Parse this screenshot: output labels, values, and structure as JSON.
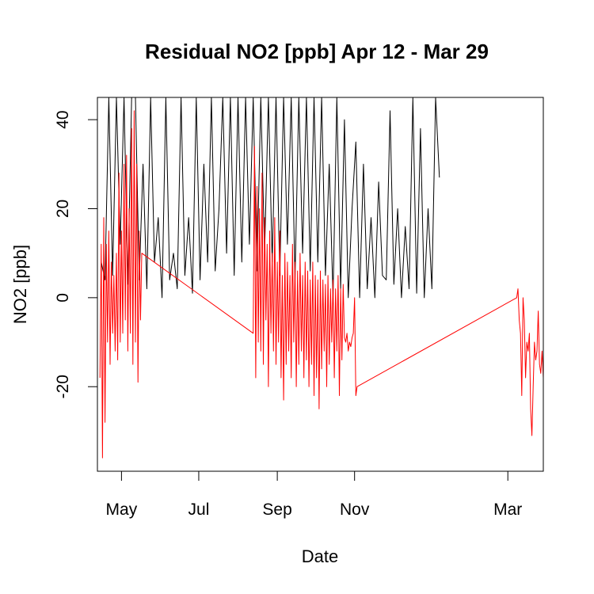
{
  "chart_data": {
    "type": "line",
    "title": "Residual NO2 [ppb] Apr 12 - Mar 29",
    "xlabel": "Date",
    "ylabel": "NO2 [ppb]",
    "x_range": [
      "2023-04-12",
      "2024-03-29"
    ],
    "ylim": [
      -39,
      45
    ],
    "x_ticks": [
      {
        "label": "May",
        "date": "2023-05-01"
      },
      {
        "label": "Jul",
        "date": "2023-07-01"
      },
      {
        "label": "Sep",
        "date": "2023-09-01"
      },
      {
        "label": "Nov",
        "date": "2023-11-01"
      },
      {
        "label": "Mar",
        "date": "2024-03-01"
      }
    ],
    "y_ticks": [
      -20,
      0,
      20,
      40
    ],
    "grid": false,
    "series": [
      {
        "color": "#000000",
        "x": [
          "2023-04-15",
          "2023-04-18",
          "2023-04-21",
          "2023-04-24",
          "2023-04-27",
          "2023-04-30",
          "2023-05-03",
          "2023-05-06",
          "2023-05-09",
          "2023-05-12",
          "2023-05-15",
          "2023-05-18",
          "2023-05-21",
          "2023-05-24",
          "2023-05-27",
          "2023-05-30",
          "2023-06-02",
          "2023-06-05",
          "2023-06-08",
          "2023-06-11",
          "2023-06-14",
          "2023-06-17",
          "2023-06-20",
          "2023-06-23",
          "2023-06-26",
          "2023-06-29",
          "2023-07-02",
          "2023-07-05",
          "2023-07-08",
          "2023-07-11",
          "2023-07-14",
          "2023-07-17",
          "2023-07-20",
          "2023-07-23",
          "2023-07-26",
          "2023-07-29",
          "2023-08-01",
          "2023-08-04",
          "2023-08-07",
          "2023-08-10",
          "2023-08-13",
          "2023-08-16",
          "2023-08-19",
          "2023-08-22",
          "2023-08-25",
          "2023-08-28",
          "2023-08-31",
          "2023-09-03",
          "2023-09-06",
          "2023-09-09",
          "2023-09-12",
          "2023-09-15",
          "2023-09-18",
          "2023-09-21",
          "2023-09-24",
          "2023-09-27",
          "2023-09-30",
          "2023-10-03",
          "2023-10-06",
          "2023-10-09",
          "2023-10-12",
          "2023-10-15",
          "2023-10-18",
          "2023-10-21",
          "2023-10-24",
          "2023-10-27",
          "2023-10-30",
          "2023-11-02",
          "2023-11-05",
          "2023-11-08",
          "2023-11-11",
          "2023-11-14",
          "2023-11-17",
          "2023-11-20",
          "2023-11-23",
          "2023-11-26",
          "2023-11-29",
          "2023-12-02",
          "2023-12-05",
          "2023-12-08",
          "2023-12-11",
          "2023-12-14",
          "2023-12-17",
          "2023-12-20",
          "2023-12-23",
          "2023-12-26",
          "2023-12-29",
          "2024-01-01",
          "2024-01-04",
          "2024-01-07"
        ],
        "y": [
          8,
          4,
          45,
          5,
          45,
          12,
          45,
          3,
          45,
          45,
          4,
          30,
          2,
          45,
          8,
          18,
          0,
          45,
          4,
          10,
          2,
          45,
          5,
          18,
          1,
          45,
          4,
          30,
          8,
          45,
          6,
          20,
          45,
          10,
          45,
          5,
          45,
          8,
          45,
          12,
          45,
          6,
          45,
          10,
          45,
          8,
          45,
          5,
          45,
          12,
          45,
          4,
          45,
          10,
          45,
          6,
          45,
          8,
          45,
          5,
          30,
          0,
          45,
          2,
          40,
          0,
          20,
          35,
          0,
          30,
          2,
          18,
          0,
          26,
          5,
          4,
          42,
          3,
          20,
          0,
          16,
          2,
          45,
          1,
          38,
          0,
          20,
          2,
          45,
          27
        ]
      },
      {
        "color": "#ff0000",
        "x": [
          "2023-04-14",
          "2023-04-15",
          "2023-04-16",
          "2023-04-17",
          "2023-04-18",
          "2023-04-19",
          "2023-04-20",
          "2023-04-21",
          "2023-04-22",
          "2023-04-23",
          "2023-04-24",
          "2023-04-25",
          "2023-04-26",
          "2023-04-27",
          "2023-04-28",
          "2023-04-29",
          "2023-04-30",
          "2023-05-01",
          "2023-05-02",
          "2023-05-03",
          "2023-05-04",
          "2023-05-05",
          "2023-05-06",
          "2023-05-07",
          "2023-05-08",
          "2023-05-09",
          "2023-05-10",
          "2023-05-11",
          "2023-05-12",
          "2023-05-13",
          "2023-05-14",
          "2023-05-15",
          "2023-05-16",
          "2023-05-17",
          "2023-08-13",
          "2023-08-14",
          "2023-08-15",
          "2023-08-16",
          "2023-08-17",
          "2023-08-18",
          "2023-08-19",
          "2023-08-20",
          "2023-08-21",
          "2023-08-22",
          "2023-08-23",
          "2023-08-24",
          "2023-08-25",
          "2023-08-26",
          "2023-08-27",
          "2023-08-28",
          "2023-08-29",
          "2023-08-30",
          "2023-08-31",
          "2023-09-01",
          "2023-09-02",
          "2023-09-03",
          "2023-09-04",
          "2023-09-05",
          "2023-09-06",
          "2023-09-07",
          "2023-09-08",
          "2023-09-09",
          "2023-09-10",
          "2023-09-11",
          "2023-09-12",
          "2023-09-13",
          "2023-09-14",
          "2023-09-15",
          "2023-09-16",
          "2023-09-17",
          "2023-09-18",
          "2023-09-19",
          "2023-09-20",
          "2023-09-21",
          "2023-09-22",
          "2023-09-23",
          "2023-09-24",
          "2023-09-25",
          "2023-09-26",
          "2023-09-27",
          "2023-09-28",
          "2023-09-29",
          "2023-09-30",
          "2023-10-01",
          "2023-10-02",
          "2023-10-03",
          "2023-10-04",
          "2023-10-05",
          "2023-10-06",
          "2023-10-07",
          "2023-10-08",
          "2023-10-09",
          "2023-10-10",
          "2023-10-11",
          "2023-10-12",
          "2023-10-13",
          "2023-10-14",
          "2023-10-15",
          "2023-10-16",
          "2023-10-17",
          "2023-10-18",
          "2023-10-19",
          "2023-10-20",
          "2023-10-21",
          "2023-10-22",
          "2023-10-23",
          "2023-10-24",
          "2023-10-25",
          "2023-10-26",
          "2023-10-27",
          "2023-10-28",
          "2023-10-29",
          "2023-10-30",
          "2023-10-31",
          "2023-11-01",
          "2023-11-02",
          "2023-11-03",
          "2024-03-08",
          "2024-03-09",
          "2024-03-10",
          "2024-03-11",
          "2024-03-12",
          "2024-03-13",
          "2024-03-14",
          "2024-03-15",
          "2024-03-16",
          "2024-03-17",
          "2024-03-18",
          "2024-03-19",
          "2024-03-20",
          "2024-03-21",
          "2024-03-22",
          "2024-03-23",
          "2024-03-24",
          "2024-03-25",
          "2024-03-26",
          "2024-03-27",
          "2024-03-28",
          "2024-03-29"
        ],
        "y": [
          -18,
          12,
          -36,
          18,
          -28,
          12,
          -10,
          15,
          -15,
          8,
          -8,
          5,
          -12,
          10,
          -14,
          28,
          -10,
          15,
          -8,
          30,
          -5,
          32,
          -12,
          20,
          -8,
          38,
          -15,
          42,
          -10,
          30,
          -19,
          15,
          -5,
          10,
          -8,
          34,
          -18,
          25,
          -10,
          20,
          -12,
          28,
          -15,
          18,
          -5,
          12,
          -20,
          15,
          -8,
          10,
          -12,
          18,
          -15,
          8,
          -10,
          15,
          -18,
          5,
          -23,
          10,
          -15,
          8,
          -12,
          5,
          -18,
          12,
          -10,
          8,
          -20,
          6,
          -15,
          10,
          -12,
          5,
          -18,
          8,
          -14,
          6,
          -20,
          4,
          -15,
          8,
          -22,
          5,
          -18,
          4,
          -25,
          6,
          -16,
          4,
          -12,
          3,
          -20,
          5,
          -15,
          2,
          -10,
          4,
          -18,
          2,
          -12,
          5,
          -22,
          2,
          -14,
          3,
          -9,
          -10,
          -8,
          -12,
          -10,
          -11,
          -9,
          -8,
          0,
          -22,
          -20,
          0,
          2,
          -5,
          -8,
          -22,
          0,
          -5,
          -18,
          -10,
          -12,
          -8,
          -25,
          -31,
          -20,
          -10,
          -14,
          -12,
          -3,
          -15,
          -17,
          -12,
          -18
        ]
      }
    ]
  }
}
